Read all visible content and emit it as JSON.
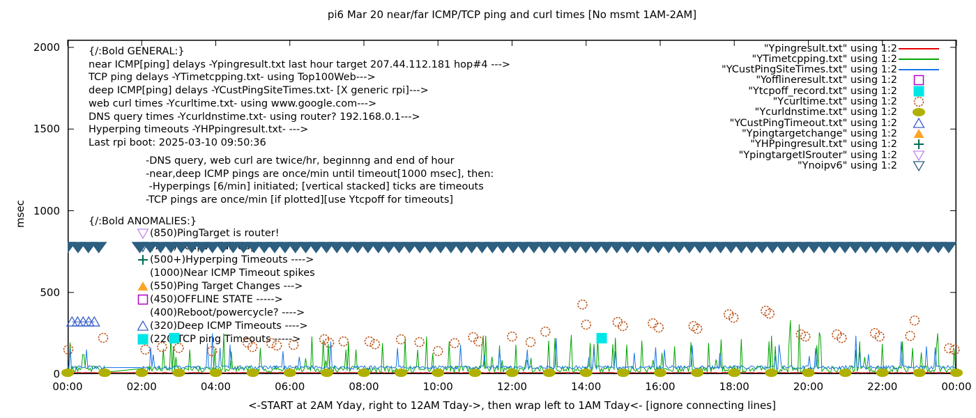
{
  "title": "pi6 Mar 20  near/far ICMP/TCP ping and curl times [No msmt 1AM-2AM]",
  "y_axis": {
    "label": "msec",
    "ticks": [
      {
        "value": 0,
        "label": "0"
      },
      {
        "value": 500,
        "label": "500"
      },
      {
        "value": 1000,
        "label": "1000"
      },
      {
        "value": 1500,
        "label": "1500"
      },
      {
        "value": 2000,
        "label": "2000"
      }
    ]
  },
  "x_axis": {
    "label": "<-START at 2AM Yday, right to 12AM Tday->, then wrap left to 1AM Tday<- [ignore connecting lines]",
    "ticks": [
      {
        "hour": 0,
        "label": "00:00"
      },
      {
        "hour": 2,
        "label": "02:00"
      },
      {
        "hour": 4,
        "label": "04:00"
      },
      {
        "hour": 6,
        "label": "06:00"
      },
      {
        "hour": 8,
        "label": "08:00"
      },
      {
        "hour": 10,
        "label": "10:00"
      },
      {
        "hour": 12,
        "label": "12:00"
      },
      {
        "hour": 14,
        "label": "14:00"
      },
      {
        "hour": 16,
        "label": "16:00"
      },
      {
        "hour": 18,
        "label": "18:00"
      },
      {
        "hour": 20,
        "label": "20:00"
      },
      {
        "hour": 22,
        "label": "22:00"
      },
      {
        "hour": 24,
        "label": "00:00"
      }
    ]
  },
  "legend": [
    {
      "label": "\"Ypingresult.txt\" using 1:2",
      "marker": "line",
      "color": "#e60000"
    },
    {
      "label": "\"YTimetcpping.txt\" using 1:2",
      "marker": "line",
      "color": "#00a400"
    },
    {
      "label": "\"YCustPingSiteTimes.txt\" using 1:2",
      "marker": "line",
      "color": "#1874e8"
    },
    {
      "label": "\"Yofflineresult.txt\" using 1:2",
      "marker": "square-open",
      "color": "#b400c8"
    },
    {
      "label": "\"Ytcpoff_record.txt\" using 1:2",
      "marker": "square-filled",
      "color": "#00e6e6"
    },
    {
      "label": "\"Ycurltime.txt\" using 1:2",
      "marker": "circle-open",
      "color": "#bc4f12"
    },
    {
      "label": "\"Ycurldnstime.txt\" using 1:2",
      "marker": "circle-filled",
      "color": "#b0b000"
    },
    {
      "label": "\"YCustPingTimeout.txt\" using 1:2",
      "marker": "triangle-up-open",
      "color": "#3a5fcd"
    },
    {
      "label": "\"Ypingtargetchange\" using 1:2",
      "marker": "triangle-up-filled",
      "color": "#ffa429"
    },
    {
      "label": "\"YHPpingresult.txt\" using 1:2",
      "marker": "plus",
      "color": "#006b54"
    },
    {
      "label": "\"YpingtargetISrouter\" using 1:2",
      "marker": "triangle-down-open",
      "color": "#c586f0"
    },
    {
      "label": "\"Ynoipv6\" using 1:2",
      "marker": "triangle-down-open",
      "color": "#2d5f80"
    }
  ],
  "annotations": {
    "general": [
      "{/:Bold GENERAL:}",
      "near ICMP[ping] delays -Ypingresult.txt last hour target 207.44.112.181 hop#4 --->",
      "TCP ping delays -YTimetcpping.txt- using Top100Web--->",
      "deep ICMP[ping] delays -YCustPingSiteTimes.txt- [X generic rpi]--->",
      "web curl times -Ycurltime.txt- using www.google.com--->",
      "DNS query times -Ycurldnstime.txt- using router? 192.168.0.1--->",
      "Hyperping timeouts -YHPpingresult.txt- --->",
      "Last rpi boot: 2025-03-10 09:50:36"
    ],
    "notes": [
      "-DNS query, web curl are twice/hr, beginnng and end of hour",
      "-near,deep ICMP pings are once/min until timeout[1000 msec], then:",
      " -Hyperpings [6/min] initiated; [vertical stacked] ticks are timeouts",
      "-TCP pings are once/min [if plotted][use Ytcpoff for timeouts]"
    ],
    "anomalies_header": "{/:Bold ANOMALIES:}",
    "anomalies": [
      {
        "marker": "triangle-down-open",
        "color": "#c586f0",
        "text": "(850)PingTarget is router!"
      },
      {
        "marker": "triangle-down-open",
        "color": "#2d5f80",
        "text": "(775)No ipv6 full day --->"
      },
      {
        "marker": "plus",
        "color": "#006b54",
        "text": "(500+)Hyperping Timeouts ---->"
      },
      {
        "marker": "none",
        "color": "",
        "text": "(1000)Near ICMP Timeout spikes"
      },
      {
        "marker": "triangle-up-filled",
        "color": "#ffa429",
        "text": "(550)Ping Target Changes --->"
      },
      {
        "marker": "square-open",
        "color": "#b400c8",
        "text": "(450)OFFLINE STATE ----->"
      },
      {
        "marker": "none",
        "color": "",
        "text": "(400)Reboot/powercycle? ---->"
      },
      {
        "marker": "triangle-up-open",
        "color": "#3a5fcd",
        "text": "(320)Deep ICMP Timeouts ---->"
      },
      {
        "marker": "square-filled",
        "color": "#00e6e6",
        "text": "(220)TCP ping Timeouts ----->"
      }
    ]
  },
  "chart_data": {
    "type": "line",
    "title": "pi6 Mar 20  near/far ICMP/TCP ping and curl times [No msmt 1AM-2AM]",
    "xlabel": "<-START at 2AM Yday, right to 12AM Tday->, then wrap left to 1AM Tday<- [ignore connecting lines]",
    "ylabel": "msec",
    "xlim_hours": [
      0,
      24
    ],
    "ylim": [
      0,
      2000
    ],
    "x_tick_hours": [
      0,
      2,
      4,
      6,
      8,
      10,
      12,
      14,
      16,
      18,
      20,
      22,
      24
    ],
    "y_tick_values": [
      0,
      500,
      1000,
      1500,
      2000
    ],
    "gap_hours": [
      1.05,
      1.95
    ],
    "series": [
      {
        "name": "Ypingresult.txt",
        "color": "#e60000",
        "style": "line",
        "gen": {
          "base": 9,
          "amp": 4,
          "skew": 0.5,
          "seed": 11,
          "step_h": 0.05,
          "spike_chance": 0,
          "spike_amp": 0
        },
        "spikes": []
      },
      {
        "name": "YTimetcpping.txt",
        "color": "#00a400",
        "style": "line",
        "gen": {
          "base": 26,
          "amp": 40,
          "skew": 0.4,
          "seed": 23,
          "step_h": 0.034,
          "spike_chance": 0.93,
          "spike_amp": 170
        },
        "spikes": [
          [
            0.4,
            120
          ],
          [
            2.8,
            235
          ],
          [
            3.3,
            150
          ],
          [
            4.2,
            250
          ],
          [
            5.2,
            160
          ],
          [
            6.6,
            230
          ],
          [
            6.9,
            210
          ],
          [
            7.8,
            150
          ],
          [
            8.5,
            190
          ],
          [
            9.7,
            230
          ],
          [
            10.3,
            200
          ],
          [
            11.2,
            160
          ],
          [
            12.1,
            180
          ],
          [
            13.0,
            205
          ],
          [
            13.6,
            240
          ],
          [
            14.1,
            190
          ],
          [
            15.1,
            180
          ],
          [
            15.5,
            205
          ],
          [
            16.4,
            170
          ],
          [
            17.3,
            190
          ],
          [
            18.2,
            215
          ],
          [
            19.0,
            235
          ],
          [
            19.5,
            330
          ],
          [
            19.75,
            305
          ],
          [
            20.3,
            255
          ],
          [
            21.4,
            200
          ],
          [
            22.0,
            185
          ],
          [
            22.8,
            160
          ],
          [
            23.5,
            250
          ]
        ]
      },
      {
        "name": "YCustPingSiteTimes.txt",
        "color": "#1874e8",
        "style": "line",
        "gen": {
          "base": 40,
          "amp": 22,
          "skew": 0.45,
          "seed": 47,
          "step_h": 0.034,
          "spike_chance": 0.96,
          "spike_amp": 120
        },
        "spikes": [
          [
            0.5,
            150
          ],
          [
            2.3,
            120
          ],
          [
            3.9,
            250
          ],
          [
            4.4,
            180
          ],
          [
            5.8,
            140
          ],
          [
            7.1,
            200
          ],
          [
            8.9,
            160
          ],
          [
            10.6,
            180
          ],
          [
            12.4,
            150
          ],
          [
            13.2,
            220
          ],
          [
            14.8,
            140
          ],
          [
            16.1,
            150
          ],
          [
            17.6,
            130
          ],
          [
            19.2,
            180
          ],
          [
            20.2,
            160
          ],
          [
            21.3,
            235
          ],
          [
            22.5,
            200
          ],
          [
            23.2,
            170
          ]
        ]
      },
      {
        "name": "Yofflineresult.txt",
        "color": "#b400c8",
        "style": "square-open",
        "points": []
      },
      {
        "name": "Ytcpoff_record.txt",
        "color": "#00e6e6",
        "style": "square-filled",
        "points": [
          [
            2.88,
            220
          ],
          [
            14.42,
            220
          ]
        ]
      },
      {
        "name": "Ycurltime.txt",
        "color": "#bc4f12",
        "style": "circle-open",
        "points": [
          [
            0.02,
            150
          ],
          [
            0.96,
            222
          ],
          [
            2.1,
            150
          ],
          [
            2.55,
            166
          ],
          [
            3.0,
            160
          ],
          [
            3.9,
            140
          ],
          [
            4.86,
            192
          ],
          [
            4.99,
            166
          ],
          [
            5.5,
            190
          ],
          [
            5.65,
            175
          ],
          [
            6.1,
            179
          ],
          [
            6.93,
            213
          ],
          [
            7.06,
            192
          ],
          [
            7.45,
            200
          ],
          [
            8.15,
            200
          ],
          [
            8.3,
            183
          ],
          [
            9.0,
            213
          ],
          [
            9.5,
            196
          ],
          [
            10.0,
            141
          ],
          [
            10.45,
            190
          ],
          [
            10.95,
            226
          ],
          [
            11.1,
            200
          ],
          [
            12.0,
            230
          ],
          [
            12.5,
            196
          ],
          [
            12.9,
            260
          ],
          [
            13.9,
            426
          ],
          [
            14.0,
            303
          ],
          [
            14.85,
            319
          ],
          [
            14.99,
            294
          ],
          [
            15.8,
            311
          ],
          [
            15.96,
            285
          ],
          [
            16.9,
            294
          ],
          [
            17.0,
            277
          ],
          [
            17.85,
            366
          ],
          [
            17.98,
            345
          ],
          [
            18.85,
            388
          ],
          [
            18.95,
            370
          ],
          [
            19.8,
            243
          ],
          [
            19.92,
            230
          ],
          [
            20.77,
            243
          ],
          [
            20.9,
            221
          ],
          [
            21.8,
            251
          ],
          [
            21.92,
            230
          ],
          [
            22.75,
            234
          ],
          [
            22.87,
            328
          ],
          [
            23.8,
            158
          ],
          [
            23.95,
            149
          ]
        ]
      },
      {
        "name": "Ycurldnstime.txt",
        "color": "#b0b000",
        "style": "circle-filled",
        "points": [
          [
            0,
            8
          ],
          [
            1,
            8
          ],
          [
            2,
            8
          ],
          [
            3,
            8
          ],
          [
            4,
            8
          ],
          [
            5,
            8
          ],
          [
            6,
            8
          ],
          [
            7,
            8
          ],
          [
            8,
            8
          ],
          [
            9,
            8
          ],
          [
            10,
            8
          ],
          [
            11,
            8
          ],
          [
            12,
            8
          ],
          [
            13,
            8
          ],
          [
            14,
            8
          ],
          [
            15,
            8
          ],
          [
            16,
            8
          ],
          [
            17,
            8
          ],
          [
            18,
            8
          ],
          [
            19,
            8
          ],
          [
            20,
            8
          ],
          [
            21,
            8
          ],
          [
            22,
            8
          ],
          [
            23,
            8
          ],
          [
            24,
            8
          ]
        ]
      },
      {
        "name": "YCustPingTimeout.txt",
        "color": "#3a5fcd",
        "style": "triangle-up-open",
        "connect": true,
        "points": [
          [
            0.12,
            320
          ],
          [
            0.27,
            320
          ],
          [
            0.42,
            320
          ],
          [
            0.57,
            320
          ],
          [
            0.72,
            320
          ]
        ]
      },
      {
        "name": "Ypingtargetchange",
        "color": "#ffa429",
        "style": "triangle-up-filled",
        "points": []
      },
      {
        "name": "YHPpingresult.txt",
        "color": "#006b54",
        "style": "plus",
        "points": []
      },
      {
        "name": "YpingtargetISrouter",
        "color": "#c586f0",
        "style": "triangle-down-open",
        "points": []
      },
      {
        "name": "Ynoipv6",
        "color": "#2d5f80",
        "style": "band-triangle-down",
        "value": 775,
        "segments": [
          [
            0.0,
            1.05
          ],
          [
            1.95,
            24.0
          ]
        ],
        "step_h": 0.28
      }
    ]
  }
}
